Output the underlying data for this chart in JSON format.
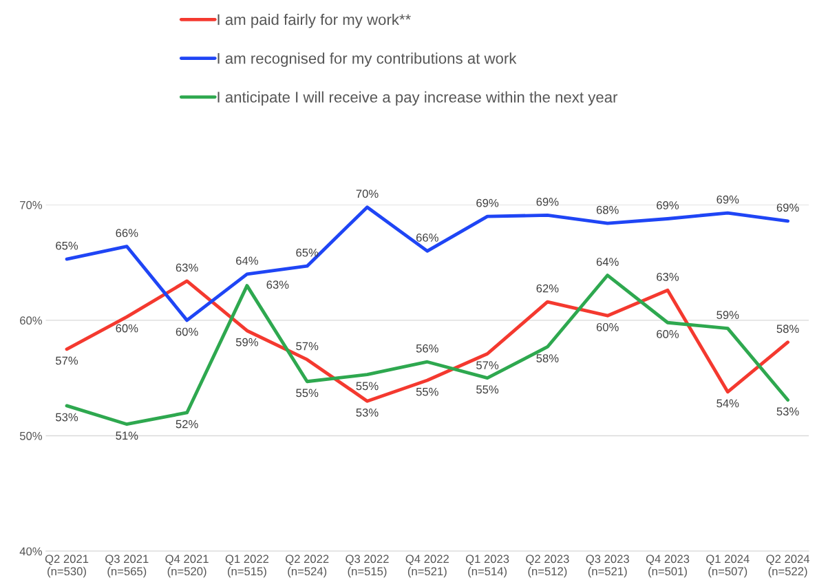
{
  "chart_data": {
    "type": "line",
    "categories": [
      "Q2 2021\n(n=530)",
      "Q3 2021\n(n=565)",
      "Q4 2021\n(n=520)",
      "Q1 2022\n(n=515)",
      "Q2 2022\n(n=524)",
      "Q3 2022\n(n=515)",
      "Q4 2022\n(n=521)",
      "Q1 2023\n(n=514)",
      "Q2 2023\n(n=512)",
      "Q3 2023\n(n=521)",
      "Q4 2023\n(n=501)",
      "Q1 2024\n(n=507)",
      "Q2 2024\n(n=522)"
    ],
    "series": [
      {
        "name": "I am paid fairly for my work**",
        "color": "#f4392f",
        "values": [
          57.5,
          60.3,
          63.4,
          59.1,
          56.6,
          53.0,
          54.8,
          57.1,
          61.6,
          60.4,
          62.6,
          53.8,
          58.1
        ],
        "value_labels": [
          "57%",
          "60%",
          "63%",
          "59%",
          "57%",
          "53%",
          "55%",
          "57%",
          "62%",
          "60%",
          "63%",
          "54%",
          "58%"
        ]
      },
      {
        "name": "I am recognised for my contributions at work",
        "color": "#1f45f5",
        "values": [
          65.3,
          66.4,
          60.0,
          64.0,
          64.7,
          69.8,
          66.0,
          69.0,
          69.1,
          68.4,
          68.8,
          69.3,
          68.6
        ],
        "value_labels": [
          "65%",
          "66%",
          "60%",
          "64%",
          "65%",
          "70%",
          "66%",
          "69%",
          "69%",
          "68%",
          "69%",
          "69%",
          "69%"
        ]
      },
      {
        "name": "I anticipate I will receive a pay increase within the next year",
        "color": "#2ea84f",
        "values": [
          52.6,
          51.0,
          52.0,
          63.0,
          54.7,
          55.3,
          56.4,
          55.0,
          57.7,
          63.9,
          59.8,
          59.3,
          53.1
        ],
        "value_labels": [
          "53%",
          "51%",
          "52%",
          "63%",
          "55%",
          "55%",
          "56%",
          "55%",
          "58%",
          "64%",
          "60%",
          "59%",
          "53%"
        ]
      }
    ],
    "ylim": [
      40,
      70
    ],
    "yticks": [
      {
        "value": 40,
        "label": "40%"
      },
      {
        "value": 50,
        "label": "50%"
      },
      {
        "value": 60,
        "label": "60%"
      },
      {
        "value": 70,
        "label": "70%"
      }
    ],
    "grid": "y",
    "legend": "top"
  }
}
